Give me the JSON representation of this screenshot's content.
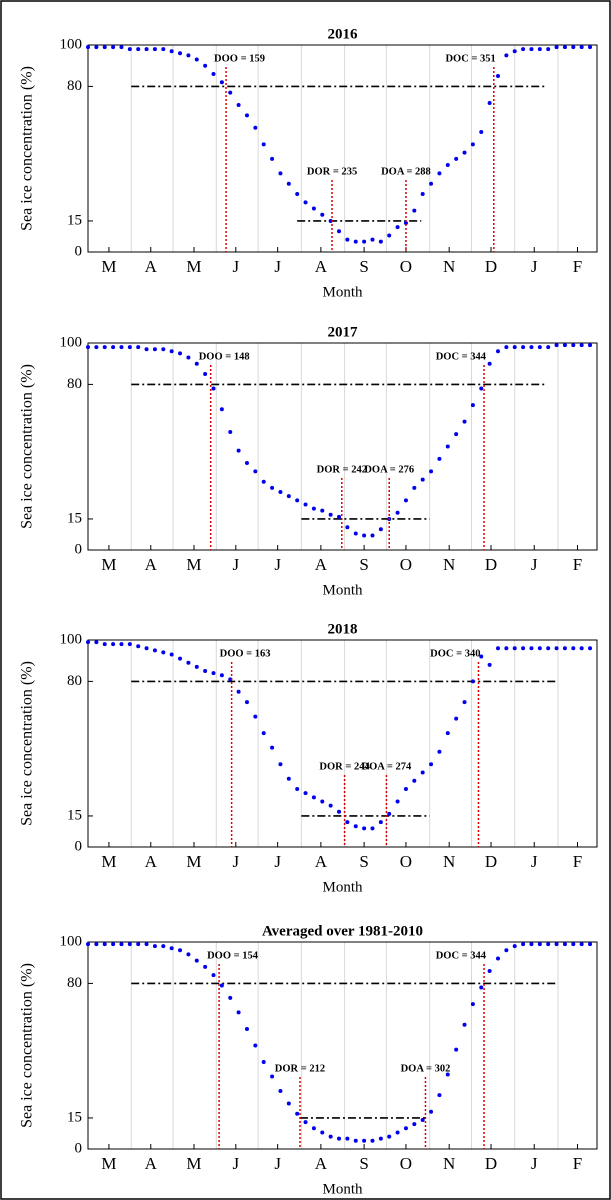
{
  "chart_data": [
    {
      "type": "scatter",
      "title": "2016",
      "xlabel": "Month",
      "ylabel": "Sea ice concentration (%)",
      "color": "#0000ee",
      "x": [
        60,
        66,
        72,
        78,
        84,
        90,
        96,
        102,
        108,
        114,
        120,
        126,
        132,
        138,
        144,
        150,
        156,
        162,
        168,
        174,
        180,
        186,
        192,
        198,
        204,
        210,
        216,
        222,
        228,
        234,
        240,
        246,
        252,
        258,
        264,
        270,
        276,
        282,
        288,
        294,
        300,
        306,
        312,
        318,
        324,
        330,
        336,
        342,
        348,
        354,
        360,
        366,
        372,
        378,
        384,
        390,
        396,
        402,
        408,
        414,
        420
      ],
      "values": [
        99,
        99,
        99,
        99,
        99,
        98,
        98,
        98,
        98,
        98,
        97,
        96,
        95,
        93,
        90,
        86,
        82,
        77,
        71,
        66,
        60,
        52,
        45,
        38,
        33,
        28,
        24,
        21,
        18,
        15,
        10,
        6,
        5,
        5,
        6,
        5,
        8,
        12,
        14,
        20,
        28,
        33,
        38,
        42,
        45,
        48,
        52,
        58,
        72,
        85,
        95,
        97,
        98,
        98,
        98,
        98,
        99,
        99,
        99,
        99,
        99
      ],
      "xlim": [
        60,
        425
      ],
      "ylim": [
        0,
        100
      ],
      "yticks": [
        0,
        15,
        80,
        100
      ],
      "xticks": [
        {
          "value": 75,
          "label": "M"
        },
        {
          "value": 105,
          "label": "A"
        },
        {
          "value": 136,
          "label": "M"
        },
        {
          "value": 166,
          "label": "J"
        },
        {
          "value": 196,
          "label": "J"
        },
        {
          "value": 227,
          "label": "A"
        },
        {
          "value": 258,
          "label": "S"
        },
        {
          "value": 288,
          "label": "O"
        },
        {
          "value": 319,
          "label": "N"
        },
        {
          "value": 349,
          "label": "D"
        },
        {
          "value": 380,
          "label": "J"
        },
        {
          "value": 411,
          "label": "F"
        }
      ],
      "xgrid": [
        91,
        121,
        152,
        182,
        213,
        244,
        274,
        305,
        335,
        366,
        397
      ],
      "thresholds": [
        {
          "y": 80,
          "x": [
            91,
            388
          ]
        },
        {
          "y": 15,
          "x": [
            210,
            299
          ]
        }
      ],
      "annotations": [
        {
          "label": "DOO = 159",
          "x": 159
        },
        {
          "label": "DOR = 235",
          "x": 235
        },
        {
          "label": "DOA = 288",
          "x": 288
        },
        {
          "label": "DOC = 351",
          "x": 351
        }
      ]
    },
    {
      "type": "scatter",
      "title": "2017",
      "xlabel": "Month",
      "ylabel": "Sea ice concentration (%)",
      "color": "#0000ee",
      "x": [
        60,
        66,
        72,
        78,
        84,
        90,
        96,
        102,
        108,
        114,
        120,
        126,
        132,
        138,
        144,
        150,
        156,
        162,
        168,
        174,
        180,
        186,
        192,
        198,
        204,
        210,
        216,
        222,
        228,
        234,
        240,
        246,
        252,
        258,
        264,
        270,
        276,
        282,
        288,
        294,
        300,
        306,
        312,
        318,
        324,
        330,
        336,
        342,
        348,
        354,
        360,
        366,
        372,
        378,
        384,
        390,
        396,
        402,
        408,
        414,
        420
      ],
      "values": [
        98,
        98,
        98,
        98,
        98,
        98,
        98,
        97,
        97,
        97,
        96,
        95,
        93,
        90,
        85,
        78,
        68,
        57,
        48,
        42,
        38,
        33,
        30,
        28,
        26,
        24,
        22,
        20,
        19,
        17,
        16,
        11,
        8,
        7,
        7,
        10,
        15,
        18,
        24,
        30,
        34,
        38,
        44,
        50,
        56,
        62,
        70,
        78,
        90,
        96,
        98,
        98,
        98,
        98,
        98,
        98,
        99,
        99,
        99,
        99,
        99
      ],
      "xlim": [
        60,
        425
      ],
      "ylim": [
        0,
        100
      ],
      "yticks": [
        0,
        15,
        80,
        100
      ],
      "xticks": [
        {
          "value": 75,
          "label": "M"
        },
        {
          "value": 105,
          "label": "A"
        },
        {
          "value": 136,
          "label": "M"
        },
        {
          "value": 166,
          "label": "J"
        },
        {
          "value": 196,
          "label": "J"
        },
        {
          "value": 227,
          "label": "A"
        },
        {
          "value": 258,
          "label": "S"
        },
        {
          "value": 288,
          "label": "O"
        },
        {
          "value": 319,
          "label": "N"
        },
        {
          "value": 349,
          "label": "D"
        },
        {
          "value": 380,
          "label": "J"
        },
        {
          "value": 411,
          "label": "F"
        }
      ],
      "xgrid": [
        91,
        121,
        152,
        182,
        213,
        244,
        274,
        305,
        335,
        366,
        397
      ],
      "thresholds": [
        {
          "y": 80,
          "x": [
            91,
            388
          ]
        },
        {
          "y": 15,
          "x": [
            213,
            305
          ]
        }
      ],
      "annotations": [
        {
          "label": "DOO = 148",
          "x": 148
        },
        {
          "label": "DOR = 242",
          "x": 242
        },
        {
          "label": "DOA = 276",
          "x": 276
        },
        {
          "label": "DOC = 344",
          "x": 344
        }
      ]
    },
    {
      "type": "scatter",
      "title": "2018",
      "xlabel": "Month",
      "ylabel": "Sea ice concentration (%)",
      "color": "#0000ee",
      "x": [
        60,
        66,
        72,
        78,
        84,
        90,
        96,
        102,
        108,
        114,
        120,
        126,
        132,
        138,
        144,
        150,
        156,
        162,
        168,
        174,
        180,
        186,
        192,
        198,
        204,
        210,
        216,
        222,
        228,
        234,
        240,
        246,
        252,
        258,
        264,
        270,
        276,
        282,
        288,
        294,
        300,
        306,
        312,
        318,
        324,
        330,
        336,
        342,
        348,
        354,
        360,
        366,
        372,
        378,
        384,
        390,
        396,
        402,
        408,
        414,
        420
      ],
      "values": [
        99,
        99,
        98,
        98,
        98,
        98,
        97,
        96,
        95,
        94,
        93,
        91,
        89,
        87,
        85,
        84,
        83,
        81,
        75,
        70,
        63,
        55,
        48,
        40,
        33,
        28,
        26,
        24,
        22,
        20,
        17,
        12,
        10,
        9,
        9,
        12,
        16,
        22,
        28,
        32,
        36,
        40,
        46,
        55,
        62,
        70,
        80,
        92,
        88,
        96,
        96,
        96,
        96,
        96,
        96,
        96,
        96,
        96,
        96,
        96,
        96
      ],
      "xlim": [
        60,
        425
      ],
      "ylim": [
        0,
        100
      ],
      "yticks": [
        0,
        15,
        80,
        100
      ],
      "xticks": [
        {
          "value": 75,
          "label": "M"
        },
        {
          "value": 105,
          "label": "A"
        },
        {
          "value": 136,
          "label": "M"
        },
        {
          "value": 166,
          "label": "J"
        },
        {
          "value": 196,
          "label": "J"
        },
        {
          "value": 227,
          "label": "A"
        },
        {
          "value": 258,
          "label": "S"
        },
        {
          "value": 288,
          "label": "O"
        },
        {
          "value": 319,
          "label": "N"
        },
        {
          "value": 349,
          "label": "D"
        },
        {
          "value": 380,
          "label": "J"
        },
        {
          "value": 411,
          "label": "F"
        }
      ],
      "xgrid": [
        91,
        121,
        152,
        182,
        213,
        244,
        274,
        305,
        335,
        366,
        397
      ],
      "thresholds": [
        {
          "y": 80,
          "x": [
            91,
            397
          ]
        },
        {
          "y": 15,
          "x": [
            213,
            305
          ]
        }
      ],
      "annotations": [
        {
          "label": "DOO = 163",
          "x": 163
        },
        {
          "label": "DOR = 244",
          "x": 244
        },
        {
          "label": "DOA = 274",
          "x": 274
        },
        {
          "label": "DOC = 340",
          "x": 340
        }
      ]
    },
    {
      "type": "scatter",
      "title": "Averaged over 1981-2010",
      "xlabel": "Month",
      "ylabel": "Sea ice concentration (%)",
      "color": "#0000ee",
      "x": [
        60,
        66,
        72,
        78,
        84,
        90,
        96,
        102,
        108,
        114,
        120,
        126,
        132,
        138,
        144,
        150,
        156,
        162,
        168,
        174,
        180,
        186,
        192,
        198,
        204,
        210,
        216,
        222,
        228,
        234,
        240,
        246,
        252,
        258,
        264,
        270,
        276,
        282,
        288,
        294,
        300,
        306,
        312,
        318,
        324,
        330,
        336,
        342,
        348,
        354,
        360,
        366,
        372,
        378,
        384,
        390,
        396,
        402,
        408,
        414,
        420
      ],
      "values": [
        99,
        99,
        99,
        99,
        99,
        99,
        99,
        99,
        98,
        98,
        97,
        96,
        94,
        91,
        88,
        84,
        79,
        73,
        66,
        58,
        50,
        42,
        35,
        28,
        22,
        17,
        13,
        10,
        8,
        6,
        5,
        5,
        4,
        4,
        4,
        5,
        6,
        8,
        10,
        12,
        14,
        18,
        26,
        36,
        48,
        60,
        70,
        78,
        86,
        92,
        96,
        98,
        99,
        99,
        99,
        99,
        99,
        99,
        99,
        99,
        99
      ],
      "xlim": [
        60,
        425
      ],
      "ylim": [
        0,
        100
      ],
      "yticks": [
        0,
        15,
        80,
        100
      ],
      "xticks": [
        {
          "value": 75,
          "label": "M"
        },
        {
          "value": 105,
          "label": "A"
        },
        {
          "value": 136,
          "label": "M"
        },
        {
          "value": 166,
          "label": "J"
        },
        {
          "value": 196,
          "label": "J"
        },
        {
          "value": 227,
          "label": "A"
        },
        {
          "value": 258,
          "label": "S"
        },
        {
          "value": 288,
          "label": "O"
        },
        {
          "value": 319,
          "label": "N"
        },
        {
          "value": 349,
          "label": "D"
        },
        {
          "value": 380,
          "label": "J"
        },
        {
          "value": 411,
          "label": "F"
        }
      ],
      "xgrid": [
        91,
        121,
        152,
        182,
        213,
        244,
        274,
        305,
        335,
        366,
        397
      ],
      "thresholds": [
        {
          "y": 80,
          "x": [
            91,
            397
          ]
        },
        {
          "y": 15,
          "x": [
            212,
            302
          ]
        }
      ],
      "annotations": [
        {
          "label": "DOO = 154",
          "x": 154
        },
        {
          "label": "DOR = 212",
          "x": 212
        },
        {
          "label": "DOA = 302",
          "x": 302
        },
        {
          "label": "DOC = 344",
          "x": 344
        }
      ]
    }
  ]
}
